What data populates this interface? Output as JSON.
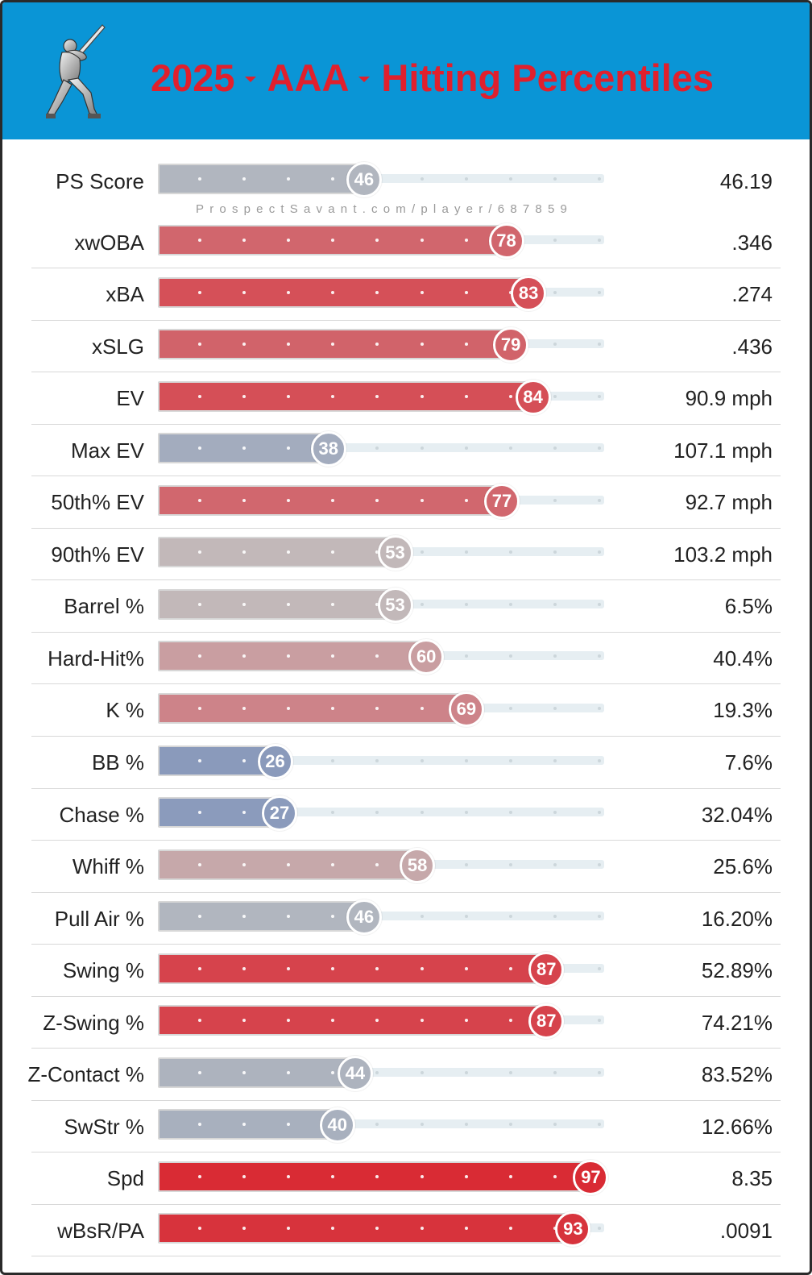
{
  "header": {
    "season": "2025",
    "level": "AAA",
    "title": "Hitting Percentiles",
    "logo_icon": "batter-silhouette-icon",
    "background_color": "#0a95d6",
    "title_color": "#e0202d"
  },
  "watermark": "ProspectSavant.com/player/687859",
  "metrics": [
    {
      "label": "PS Score",
      "percentile": 46,
      "value": "46.19",
      "color": "#b1b6bf"
    },
    {
      "label": "xwOBA",
      "percentile": 78,
      "value": ".346",
      "color": "#d1666d"
    },
    {
      "label": "xBA",
      "percentile": 83,
      "value": ".274",
      "color": "#d55058"
    },
    {
      "label": "xSLG",
      "percentile": 79,
      "value": ".436",
      "color": "#d1636a"
    },
    {
      "label": "EV",
      "percentile": 84,
      "value": "90.9 mph",
      "color": "#d54f57"
    },
    {
      "label": "Max EV",
      "percentile": 38,
      "value": "107.1 mph",
      "color": "#a3acbe"
    },
    {
      "label": "50th% EV",
      "percentile": 77,
      "value": "92.7 mph",
      "color": "#d1676e"
    },
    {
      "label": "90th% EV",
      "percentile": 53,
      "value": "103.2 mph",
      "color": "#c2b8b9"
    },
    {
      "label": "Barrel %",
      "percentile": 53,
      "value": "6.5%",
      "color": "#c2b8b9"
    },
    {
      "label": "Hard-Hit%",
      "percentile": 60,
      "value": "40.4%",
      "color": "#c99ea1"
    },
    {
      "label": "K %",
      "percentile": 69,
      "value": "19.3%",
      "color": "#cd8389"
    },
    {
      "label": "BB %",
      "percentile": 26,
      "value": "7.6%",
      "color": "#8a9abb"
    },
    {
      "label": "Chase %",
      "percentile": 27,
      "value": "32.04%",
      "color": "#8b9bbc"
    },
    {
      "label": "Whiff %",
      "percentile": 58,
      "value": "25.6%",
      "color": "#c6a8aa"
    },
    {
      "label": "Pull Air %",
      "percentile": 46,
      "value": "16.20%",
      "color": "#b1b6bf"
    },
    {
      "label": "Swing %",
      "percentile": 87,
      "value": "52.89%",
      "color": "#d6434c"
    },
    {
      "label": "Z-Swing %",
      "percentile": 87,
      "value": "74.21%",
      "color": "#d6434c"
    },
    {
      "label": "Z-Contact %",
      "percentile": 44,
      "value": "83.52%",
      "color": "#adb3be"
    },
    {
      "label": "SwStr %",
      "percentile": 40,
      "value": "12.66%",
      "color": "#a8b0be"
    },
    {
      "label": "Spd",
      "percentile": 97,
      "value": "8.35",
      "color": "#d92b34"
    },
    {
      "label": "wBsR/PA",
      "percentile": 93,
      "value": ".0091",
      "color": "#d7333c"
    }
  ]
}
